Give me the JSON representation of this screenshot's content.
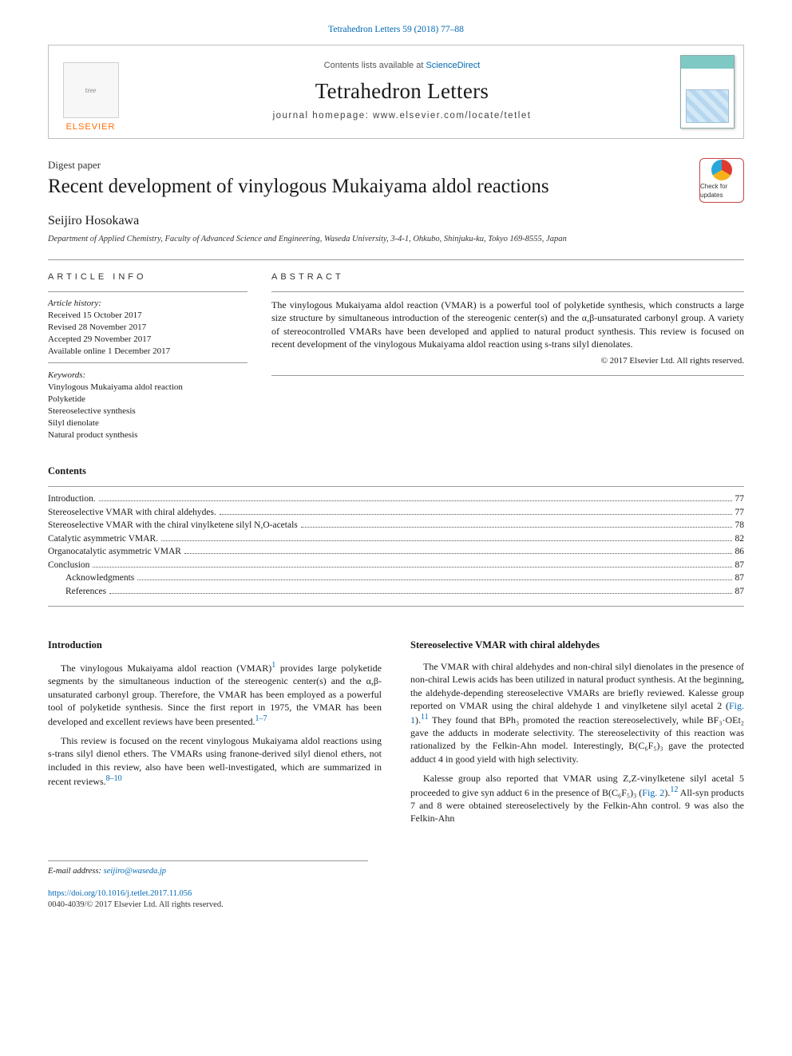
{
  "colors": {
    "link": "#0068b3",
    "text": "#1a1a1a",
    "border": "#bfbfbf",
    "elsevier_orange": "#ff6c00",
    "rule": "#999999",
    "background": "#ffffff"
  },
  "typography": {
    "body_font": "Georgia, 'Times New Roman', serif",
    "sans_font": "Arial, sans-serif",
    "title_fontsize_pt": 25,
    "journal_name_fontsize_pt": 27,
    "body_fontsize_pt": 12,
    "info_fontsize_pt": 11
  },
  "citation": "Tetrahedron Letters 59 (2018) 77–88",
  "header": {
    "publisher_logo_alt": "Elsevier tree",
    "publisher_word": "ELSEVIER",
    "contents_prefix": "Contents lists available at ",
    "contents_link_text": "ScienceDirect",
    "journal_name": "Tetrahedron Letters",
    "homepage_line": "journal homepage: www.elsevier.com/locate/tetlet",
    "cover_caption": "Tetrahedron Letters"
  },
  "doc": {
    "doctype": "Digest paper",
    "title": "Recent development of vinylogous Mukaiyama aldol reactions",
    "updates_badge": "Check for updates",
    "author": "Seijiro Hosokawa",
    "affiliation": "Department of Applied Chemistry, Faculty of Advanced Science and Engineering, Waseda University, 3-4-1, Ohkubo, Shinjuku-ku, Tokyo 169-8555, Japan"
  },
  "article_info": {
    "heading": "ARTICLE INFO",
    "history_head": "Article history:",
    "history": [
      "Received 15 October 2017",
      "Revised 28 November 2017",
      "Accepted 29 November 2017",
      "Available online 1 December 2017"
    ],
    "keywords_head": "Keywords:",
    "keywords": [
      "Vinylogous Mukaiyama aldol reaction",
      "Polyketide",
      "Stereoselective synthesis",
      "Silyl dienolate",
      "Natural product synthesis"
    ]
  },
  "abstract": {
    "heading": "ABSTRACT",
    "text": "The vinylogous Mukaiyama aldol reaction (VMAR) is a powerful tool of polyketide synthesis, which constructs a large size structure by simultaneous introduction of the stereogenic center(s) and the α,β-unsaturated carbonyl group. A variety of stereocontrolled VMARs have been developed and applied to natural product synthesis. This review is focused on recent development of the vinylogous Mukaiyama aldol reaction using s-trans silyl dienolates.",
    "copyright": "© 2017 Elsevier Ltd. All rights reserved."
  },
  "toc": {
    "heading": "Contents",
    "items": [
      {
        "label": "Introduction.",
        "page": "77",
        "indent": 0
      },
      {
        "label": "Stereoselective VMAR with chiral aldehydes.",
        "page": "77",
        "indent": 0
      },
      {
        "label": "Stereoselective VMAR with the chiral vinylketene silyl N,O-acetals",
        "page": "78",
        "indent": 0
      },
      {
        "label": "Catalytic asymmetric VMAR.",
        "page": "82",
        "indent": 0
      },
      {
        "label": "Organocatalytic asymmetric VMAR",
        "page": "86",
        "indent": 0
      },
      {
        "label": "Conclusion",
        "page": "87",
        "indent": 0
      },
      {
        "label": "Acknowledgments",
        "page": "87",
        "indent": 1
      },
      {
        "label": "References",
        "page": "87",
        "indent": 1
      }
    ]
  },
  "body": {
    "left": {
      "heading": "Introduction",
      "p1_a": "The vinylogous Mukaiyama aldol reaction (VMAR)",
      "p1_ref": "1",
      "p1_b": " provides large polyketide segments by the simultaneous induction of the stereogenic center(s) and the α,β-unsaturated carbonyl group. Therefore, the VMAR has been employed as a powerful tool of polyketide synthesis. Since the first report in 1975, the VMAR has been developed and excellent reviews have been presented.",
      "p1_ref2": "1–7",
      "p2_a": "This review is focused on the recent vinylogous Mukaiyama aldol reactions using s-trans silyl dienol ethers. The VMARs using franone-derived silyl dienol ethers, not included in this review, also have been well-investigated, which are summarized in recent reviews.",
      "p2_ref": "8–10"
    },
    "right": {
      "heading": "Stereoselective VMAR with chiral aldehydes",
      "p1_a": "The VMAR with chiral aldehydes and non-chiral silyl dienolates in the presence of non-chiral Lewis acids has been utilized in natural product synthesis. At the beginning, the aldehyde-depending stereoselective VMARs are briefly reviewed. Kalesse group reported on VMAR using the chiral aldehyde 1 and vinylketene silyl acetal 2 (",
      "p1_fig": "Fig. 1",
      "p1_b": ").",
      "p1_ref": "11",
      "p1_c": " They found that BPh₃ promoted the reaction stereoselectively, while BF₃·OEt₂ gave the adducts in moderate selectivity. The stereoselectivity of this reaction was rationalized by the Felkin-Ahn model. Interestingly, B(C₆F₅)₃ gave the protected adduct 4 in good yield with high selectivity.",
      "p2_a": "Kalesse group also reported that VMAR using Z,Z-vinylketene silyl acetal 5 proceeded to give syn adduct 6 in the presence of B(C₆F₅)₃ (",
      "p2_fig": "Fig. 2",
      "p2_b": ").",
      "p2_ref": "12",
      "p2_c": " All-syn products 7 and 8 were obtained stereoselectively by the Felkin-Ahn control. 9 was also the Felkin-Ahn"
    }
  },
  "footer": {
    "email_label": "E-mail address: ",
    "email": "seijiro@waseda.jp",
    "doi": "https://doi.org/10.1016/j.tetlet.2017.11.056",
    "issn_line": "0040-4039/© 2017 Elsevier Ltd. All rights reserved."
  }
}
